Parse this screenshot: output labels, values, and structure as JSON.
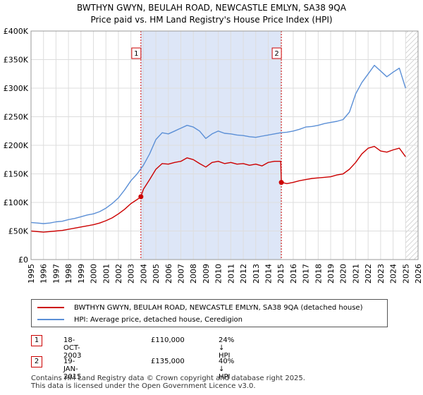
{
  "title_line1": "BWTHYN GWYN, BEULAH ROAD, NEWCASTLE EMLYN, SA38 9QA",
  "title_line2": "Price paid vs. HM Land Registry's House Price Index (HPI)",
  "chart_data": {
    "type": "line",
    "xlim": [
      1995,
      2026
    ],
    "ylim": [
      0,
      400000
    ],
    "x_ticks": [
      1995,
      1996,
      1997,
      1998,
      1999,
      2000,
      2001,
      2002,
      2003,
      2004,
      2005,
      2006,
      2007,
      2008,
      2009,
      2010,
      2011,
      2012,
      2013,
      2014,
      2015,
      2016,
      2017,
      2018,
      2019,
      2020,
      2021,
      2022,
      2023,
      2024,
      2025,
      2026
    ],
    "y_ticks": [
      0,
      50000,
      100000,
      150000,
      200000,
      250000,
      300000,
      350000,
      400000
    ],
    "y_tick_labels": [
      "£0",
      "£50K",
      "£100K",
      "£150K",
      "£200K",
      "£250K",
      "£300K",
      "£350K",
      "£400K"
    ],
    "shaded_range": [
      2003.8,
      2015.05
    ],
    "future_hatch_start": 2025.0,
    "colors": {
      "property": "#cc0000",
      "hpi": "#5b8fd6",
      "shade": "#dde6f7",
      "grid": "#dddddd"
    },
    "series": [
      {
        "name": "BWTHYN GWYN, BEULAH ROAD, NEWCASTLE EMLYN, SA38 9QA (detached house)",
        "color": "#cc0000",
        "x": [
          1995,
          1995.5,
          1996,
          1996.5,
          1997,
          1997.5,
          1998,
          1998.5,
          1999,
          1999.5,
          2000,
          2000.5,
          2001,
          2001.5,
          2002,
          2002.5,
          2003,
          2003.5,
          2003.8,
          2004,
          2004.5,
          2005,
          2005.5,
          2006,
          2006.5,
          2007,
          2007.5,
          2008,
          2008.5,
          2009,
          2009.5,
          2010,
          2010.5,
          2011,
          2011.5,
          2012,
          2012.5,
          2013,
          2013.5,
          2014,
          2014.5,
          2015.0,
          2015.05,
          2015.5,
          2016,
          2016.5,
          2017,
          2017.5,
          2018,
          2018.5,
          2019,
          2019.5,
          2020,
          2020.5,
          2021,
          2021.5,
          2022,
          2022.5,
          2023,
          2023.5,
          2024,
          2024.5,
          2025.0
        ],
        "y": [
          50000,
          49000,
          48000,
          49000,
          50000,
          51000,
          53000,
          55000,
          57000,
          59000,
          61000,
          64000,
          68000,
          73000,
          80000,
          88000,
          98000,
          105000,
          110000,
          123000,
          140000,
          158000,
          168000,
          167000,
          170000,
          172000,
          178000,
          175000,
          168000,
          162000,
          170000,
          172000,
          168000,
          170000,
          167000,
          168000,
          165000,
          167000,
          164000,
          170000,
          172000,
          172000,
          135000,
          133000,
          135000,
          138000,
          140000,
          142000,
          143000,
          144000,
          145000,
          148000,
          150000,
          158000,
          170000,
          185000,
          195000,
          198000,
          190000,
          188000,
          192000,
          195000,
          180000
        ]
      },
      {
        "name": "HPI: Average price, detached house, Ceredigion",
        "color": "#5b8fd6",
        "x": [
          1995,
          1995.5,
          1996,
          1996.5,
          1997,
          1997.5,
          1998,
          1998.5,
          1999,
          1999.5,
          2000,
          2000.5,
          2001,
          2001.5,
          2002,
          2002.5,
          2003,
          2003.5,
          2004,
          2004.5,
          2005,
          2005.5,
          2006,
          2006.5,
          2007,
          2007.5,
          2008,
          2008.5,
          2009,
          2009.5,
          2010,
          2010.5,
          2011,
          2011.5,
          2012,
          2012.5,
          2013,
          2013.5,
          2014,
          2014.5,
          2015,
          2015.5,
          2016,
          2016.5,
          2017,
          2017.5,
          2018,
          2018.5,
          2019,
          2019.5,
          2020,
          2020.5,
          2021,
          2021.5,
          2022,
          2022.5,
          2023,
          2023.5,
          2024,
          2024.5,
          2025.0
        ],
        "y": [
          65000,
          64000,
          63000,
          64000,
          66000,
          67000,
          70000,
          72000,
          75000,
          78000,
          80000,
          84000,
          90000,
          98000,
          108000,
          122000,
          138000,
          150000,
          165000,
          185000,
          210000,
          222000,
          220000,
          225000,
          230000,
          235000,
          232000,
          225000,
          212000,
          220000,
          225000,
          221000,
          220000,
          218000,
          217000,
          215000,
          214000,
          216000,
          218000,
          220000,
          222000,
          223000,
          225000,
          228000,
          232000,
          233000,
          235000,
          238000,
          240000,
          242000,
          245000,
          258000,
          290000,
          310000,
          325000,
          340000,
          330000,
          320000,
          328000,
          335000,
          300000
        ]
      }
    ],
    "annotations": [
      {
        "label": "1",
        "x": 2003.8,
        "y": 110000
      },
      {
        "label": "2",
        "x": 2015.05,
        "y": 135000
      }
    ]
  },
  "legend": {
    "property_label": "BWTHYN GWYN, BEULAH ROAD, NEWCASTLE EMLYN, SA38 9QA (detached house)",
    "hpi_label": "HPI: Average price, detached house, Ceredigion"
  },
  "transactions": [
    {
      "id": "1",
      "date": "18-OCT-2003",
      "price": "£110,000",
      "delta": "24% ↓ HPI"
    },
    {
      "id": "2",
      "date": "19-JAN-2015",
      "price": "£135,000",
      "delta": "40% ↓ HPI"
    }
  ],
  "footer_line1": "Contains HM Land Registry data © Crown copyright and database right 2025.",
  "footer_line2": "This data is licensed under the Open Government Licence v3.0."
}
